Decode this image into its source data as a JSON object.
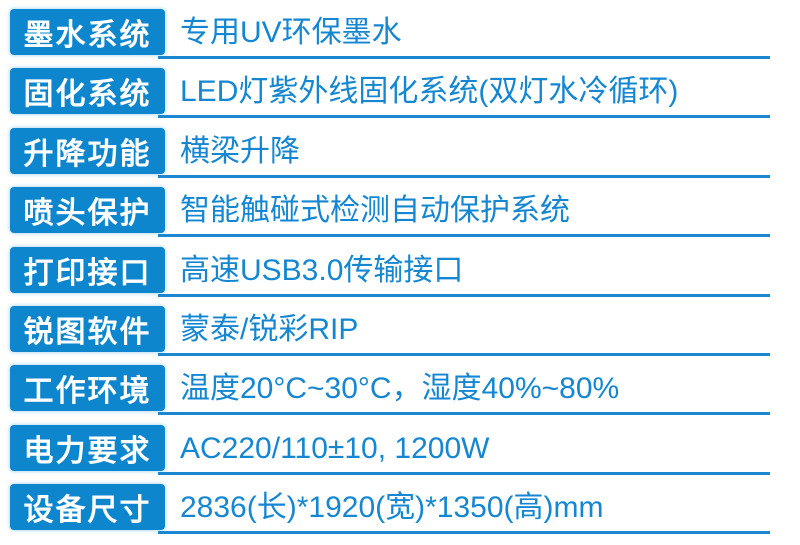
{
  "table": {
    "rows": [
      {
        "label": "墨水系统",
        "value": "专用UV环保墨水"
      },
      {
        "label": "固化系统",
        "value": "LED灯紫外线固化系统(双灯水冷循环)"
      },
      {
        "label": "升降功能",
        "value": "横梁升降"
      },
      {
        "label": "喷头保护",
        "value": "智能触碰式检测自动保护系统"
      },
      {
        "label": "打印接口",
        "value": "高速USB3.0传输接口"
      },
      {
        "label": "锐图软件",
        "value": "蒙泰/锐彩RIP"
      },
      {
        "label": "工作环境",
        "value": "温度20°C~30°C，湿度40%~80%"
      },
      {
        "label": "电力要求",
        "value": "AC220/110±10, 1200W"
      },
      {
        "label": "设备尺寸",
        "value": "2836(长)*1920(宽)*1350(高)mm"
      }
    ]
  },
  "colors": {
    "badge_background": "#0e86cd",
    "badge_text": "#ffffff",
    "value_text": "#1586d1",
    "underline": "#1b87d1",
    "page_background": "#ffffff"
  }
}
